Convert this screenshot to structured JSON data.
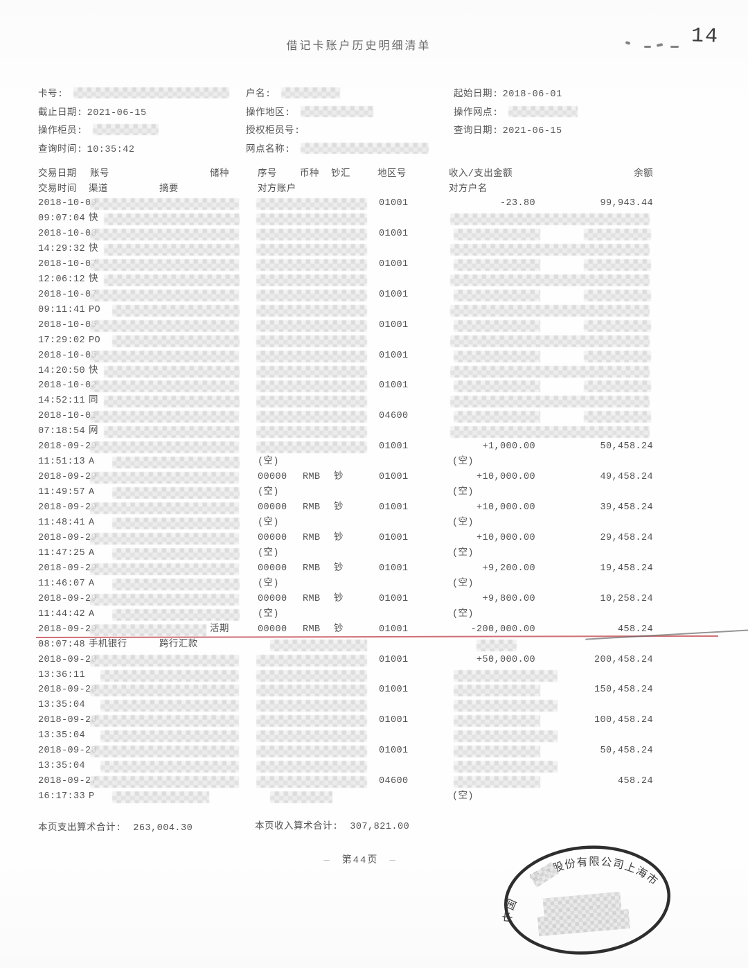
{
  "title": "借记卡账户历史明细清单",
  "corner": {
    "page_number": "14"
  },
  "header": {
    "left": [
      {
        "label": "卡号:",
        "value": "",
        "redacted_w": 225
      },
      {
        "label": "截止日期:",
        "value": "2021-06-15",
        "redacted_w": 0
      },
      {
        "label": "操作柜员:",
        "value": "",
        "redacted_w": 95
      },
      {
        "label": "查询时间:",
        "value": "10:35:42",
        "redacted_w": 0
      }
    ],
    "middle": [
      {
        "label": "户名:",
        "value": "",
        "redacted_w": 85
      },
      {
        "label": "操作地区:",
        "value": "",
        "redacted_w": 105
      },
      {
        "label": "授权柜员号:",
        "value": "",
        "redacted_w": 0
      },
      {
        "label": "网点名称:",
        "value": "",
        "redacted_w": 185
      }
    ],
    "right": [
      {
        "label": "起始日期:",
        "value": "2018-06-01",
        "redacted_w": 0
      },
      {
        "label": "操作网点:",
        "value": "",
        "redacted_w": 100
      },
      {
        "label": "查询日期:",
        "value": "2021-06-15",
        "redacted_w": 0
      }
    ]
  },
  "table": {
    "header_line1": [
      "交易日期",
      "账号",
      "储种",
      "序号",
      "币种",
      "钞汇",
      "地区号",
      "收入/支出金额",
      "余额"
    ],
    "header_line2": [
      "交易时间",
      "渠道",
      "摘要",
      "对方账户",
      "对方户名"
    ],
    "transactions": [
      {
        "date": "2018-10-09",
        "time": "09:07:04",
        "channel": "快",
        "channel_blur": [
          150,
          196
        ],
        "account_blur": [
          130,
          215
        ],
        "serial_blur": [
          370,
          160
        ],
        "region": "01001",
        "amount": "-23.80",
        "balance": "99,943.44",
        "counter_account_blur": [
          370,
          160
        ],
        "counter_name_blur": [
          650,
          288
        ]
      },
      {
        "date": "2018-10-08",
        "time": "14:29:32",
        "channel": "快",
        "channel_blur": [
          150,
          196
        ],
        "account_blur": [
          130,
          215
        ],
        "serial_blur": [
          370,
          160
        ],
        "region": "01001",
        "amount_blur": [
          655,
          125
        ],
        "balance_blur": [
          843,
          97
        ],
        "counter_account_blur": [
          370,
          160
        ],
        "counter_name_blur": [
          650,
          288
        ]
      },
      {
        "date": "2018-10-07",
        "time": "12:06:12",
        "channel": "快",
        "channel_blur": [
          150,
          196
        ],
        "account_blur": [
          130,
          215
        ],
        "serial_blur": [
          370,
          160
        ],
        "region": "01001",
        "amount_blur": [
          655,
          125
        ],
        "balance_blur": [
          843,
          97
        ],
        "counter_account_blur": [
          370,
          160
        ],
        "counter_name_blur": [
          650,
          288
        ]
      },
      {
        "date": "2018-10-07",
        "time": "09:11:41",
        "channel": "PO",
        "channel_blur": [
          162,
          184
        ],
        "account_blur": [
          130,
          215
        ],
        "serial_blur": [
          370,
          160
        ],
        "region": "01001",
        "amount_blur": [
          655,
          125
        ],
        "balance_blur": [
          843,
          97
        ],
        "counter_account_blur": [
          370,
          160
        ],
        "counter_name_blur": [
          650,
          288
        ]
      },
      {
        "date": "2018-10-05",
        "time": "17:29:02",
        "channel": "PO",
        "channel_blur": [
          162,
          184
        ],
        "account_blur": [
          130,
          215
        ],
        "serial_blur": [
          370,
          160
        ],
        "region": "01001",
        "amount_blur": [
          655,
          125
        ],
        "balance_blur": [
          843,
          97
        ],
        "counter_account_blur": [
          370,
          160
        ],
        "counter_name_blur": [
          650,
          288
        ]
      },
      {
        "date": "2018-10-05",
        "time": "14:20:50",
        "channel": "快",
        "channel_blur": [
          150,
          196
        ],
        "account_blur": [
          130,
          215
        ],
        "serial_blur": [
          370,
          160
        ],
        "region": "01001",
        "amount_blur": [
          655,
          125
        ],
        "balance_blur": [
          843,
          97
        ],
        "counter_account_blur": [
          370,
          160
        ],
        "counter_name_blur": [
          650,
          288
        ]
      },
      {
        "date": "2018-10-02",
        "time": "14:52:11",
        "channel": "同",
        "channel_blur": [
          150,
          196
        ],
        "account_blur": [
          130,
          215
        ],
        "serial_blur": [
          370,
          160
        ],
        "region": "01001",
        "amount_blur": [
          655,
          125
        ],
        "balance_blur": [
          843,
          97
        ],
        "counter_account_blur": [
          370,
          160
        ],
        "counter_name_blur": [
          650,
          288
        ]
      },
      {
        "date": "2018-10-01",
        "time": "07:18:54",
        "channel": "网",
        "channel_blur": [
          150,
          196
        ],
        "account_blur": [
          130,
          215
        ],
        "serial_blur": [
          370,
          160
        ],
        "region": "04600",
        "amount_blur": [
          655,
          125
        ],
        "balance_blur": [
          843,
          97
        ],
        "counter_account_blur": [
          370,
          160
        ],
        "counter_name_blur": [
          650,
          288
        ]
      },
      {
        "date": "2018-09-29",
        "time": "11:51:13",
        "channel": "A",
        "channel_blur": [
          162,
          184
        ],
        "account_blur": [
          130,
          215
        ],
        "serial_blur": [
          370,
          160
        ],
        "region": "01001",
        "amount": "+1,000.00",
        "balance": "50,458.24",
        "counter_account": "(空)",
        "counter_name": "(空)"
      },
      {
        "date": "2018-09-29",
        "time": "11:49:57",
        "channel": "A",
        "channel_blur": [
          162,
          184
        ],
        "account_blur": [
          130,
          215
        ],
        "serial": "00000",
        "currency": "RMB",
        "cash": "钞",
        "region": "01001",
        "amount": "+10,000.00",
        "balance": "49,458.24",
        "counter_account": "(空)",
        "counter_name": "(空)"
      },
      {
        "date": "2018-09-29",
        "time": "11:48:41",
        "channel": "A",
        "channel_blur": [
          162,
          184
        ],
        "account_blur": [
          130,
          215
        ],
        "serial": "00000",
        "currency": "RMB",
        "cash": "钞",
        "region": "01001",
        "amount": "+10,000.00",
        "balance": "39,458.24",
        "counter_account": "(空)",
        "counter_name": "(空)"
      },
      {
        "date": "2018-09-29",
        "time": "11:47:25",
        "channel": "A",
        "channel_blur": [
          162,
          184
        ],
        "account_blur": [
          130,
          215
        ],
        "serial": "00000",
        "currency": "RMB",
        "cash": "钞",
        "region": "01001",
        "amount": "+10,000.00",
        "balance": "29,458.24",
        "counter_account": "(空)",
        "counter_name": "(空)"
      },
      {
        "date": "2018-09-29",
        "time": "11:46:07",
        "channel": "A",
        "channel_blur": [
          162,
          184
        ],
        "account_blur": [
          130,
          215
        ],
        "serial": "00000",
        "currency": "RMB",
        "cash": "钞",
        "region": "01001",
        "amount": "+9,200.00",
        "balance": "19,458.24",
        "counter_account": "(空)",
        "counter_name": "(空)"
      },
      {
        "date": "2018-09-29",
        "time": "11:44:42",
        "channel": "A",
        "channel_blur": [
          162,
          184
        ],
        "account_blur": [
          130,
          215
        ],
        "serial": "00000",
        "currency": "RMB",
        "cash": "钞",
        "region": "01001",
        "amount": "+9,800.00",
        "balance": "10,258.24",
        "counter_account": "(空)",
        "counter_name": "(空)"
      },
      {
        "date": "2018-09-29",
        "time": "08:07:48",
        "channel": "手机银行",
        "summary": "跨行汇款",
        "account_blur": [
          130,
          168
        ],
        "deposit_type": "活期",
        "serial": "00000",
        "currency": "RMB",
        "cash": "钞",
        "region": "01001",
        "amount": "-200,000.00",
        "balance": "458.24",
        "counter_account_blur": [
          390,
          140
        ],
        "counter_name_blur": [
          688,
          58
        ],
        "red_underline": true
      },
      {
        "date": "2018-09-28",
        "time": "13:36:11",
        "channel": "",
        "channel_blur": [
          145,
          200
        ],
        "account_blur": [
          130,
          215
        ],
        "serial_blur": [
          370,
          160
        ],
        "region": "01001",
        "amount": "+50,000.00",
        "balance": "200,458.24",
        "counter_account_blur": [
          370,
          160
        ],
        "counter_name_blur": [
          655,
          150
        ]
      },
      {
        "date": "2018-09-28",
        "time": "13:35:04",
        "channel": "",
        "channel_blur": [
          145,
          200
        ],
        "account_blur": [
          130,
          215
        ],
        "serial_blur": [
          370,
          160
        ],
        "region": "01001",
        "amount_blur": [
          655,
          125
        ],
        "balance": "150,458.24",
        "counter_account_blur": [
          370,
          160
        ],
        "counter_name_blur": [
          655,
          150
        ]
      },
      {
        "date": "2018-09-28",
        "time": "13:35:04",
        "channel": "",
        "channel_blur": [
          145,
          200
        ],
        "account_blur": [
          130,
          215
        ],
        "serial_blur": [
          370,
          160
        ],
        "region": "01001",
        "amount_blur": [
          655,
          125
        ],
        "balance": "100,458.24",
        "counter_account_blur": [
          370,
          160
        ],
        "counter_name_blur": [
          655,
          150
        ]
      },
      {
        "date": "2018-09-28",
        "time": "13:35:04",
        "channel": "",
        "channel_blur": [
          145,
          200
        ],
        "account_blur": [
          130,
          215
        ],
        "serial_blur": [
          370,
          160
        ],
        "region": "01001",
        "amount_blur": [
          655,
          125
        ],
        "balance": "50,458.24",
        "counter_account_blur": [
          370,
          160
        ],
        "counter_name_blur": [
          655,
          150
        ]
      },
      {
        "date": "2018-09-27",
        "time": "16:17:33",
        "channel": "P",
        "channel_blur": [
          162,
          140
        ],
        "account_blur": [
          130,
          215
        ],
        "serial_blur": [
          370,
          160
        ],
        "region": "04600",
        "amount_blur": [
          655,
          125
        ],
        "balance": "458.24",
        "counter_account_blur": [
          390,
          90
        ],
        "counter_name": "(空)"
      }
    ]
  },
  "footer": {
    "expense_label": "本页支出算术合计:",
    "expense_total": "263,004.30",
    "income_label": "本页收入算术合计:",
    "income_total": "307,821.00",
    "page_label": "第44页"
  },
  "stamp": {
    "arc_text": "中国　　银行股份有限公司上海市"
  }
}
